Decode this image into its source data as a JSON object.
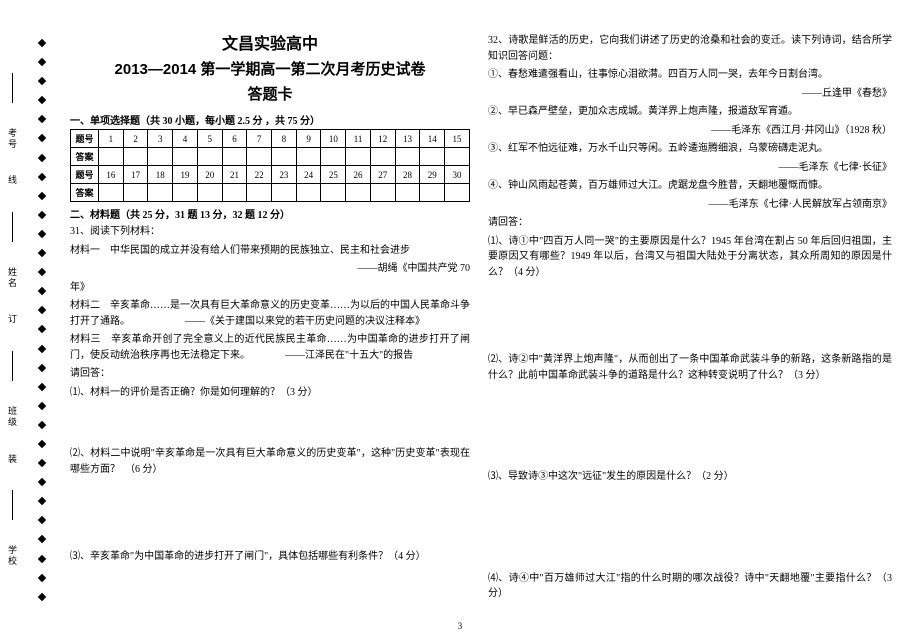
{
  "binding": {
    "labels": [
      "学校",
      "班级",
      "姓名",
      "考号"
    ],
    "seal_chars": [
      "装",
      "订",
      "线"
    ]
  },
  "header": {
    "school": "文昌实验高中",
    "exam": "2013—2014 第一学期高一第二次月考历史试卷",
    "sheet": "答题卡"
  },
  "section1": {
    "title": "一、单项选择题（共 30 小题，每小题 2.5 分 ，共 75 分）",
    "row_label_q": "题号",
    "row_label_a": "答案",
    "nums_a": [
      "1",
      "2",
      "3",
      "4",
      "5",
      "6",
      "7",
      "8",
      "9",
      "10",
      "11",
      "12",
      "13",
      "14",
      "15"
    ],
    "nums_b": [
      "16",
      "17",
      "18",
      "19",
      "20",
      "21",
      "22",
      "23",
      "24",
      "25",
      "26",
      "27",
      "28",
      "29",
      "30"
    ]
  },
  "section2": {
    "title": "二、材料题（共 25 分，31 题 13 分，32 题 12 分）",
    "q31_intro": "31、阅读下列材料：",
    "m1": "材料一　中华民国的成立并没有给人们带来预期的民族独立、民主和社会进步",
    "m1_src": "——胡绳《中国共产党 70",
    "m1_src2": "年》",
    "m2": "材料二　辛亥革命……是一次具有巨大革命意义的历史变革……为以后的中国人民革命斗争打开了通路。　　　　　　——《关于建国以来党的若干历史问题的决议注释本》",
    "m3": "材料三　辛亥革命开创了完全意义上的近代民族民主革命……为中国革命的进步打开了闸门，使反动统治秩序再也无法稳定下来。　　　　——江泽民在\"十五大\"的报告",
    "ask": "请回答：",
    "q1_1": "⑴、材料一的评价是否正确？你是如何理解的？（3 分）",
    "q1_2": "⑵、材料二中说明\"辛亥革命是一次具有巨大革命意义的历史变革\"，这种\"历史变革\"表现在哪些方面？　（6 分）",
    "q1_3": "⑶、辛亥革命\"为中国革命的进步打开了闸门\"，具体包括哪些有利条件？（4 分）"
  },
  "q32": {
    "intro": "32、诗歌是鲜活的历史，它向我们讲述了历史的沧桑和社会的变迁。读下列诗词，结合所学知识回答问题：",
    "p1": "①、春愁难遣强看山，往事惊心泪欲潸。四百万人同一哭，去年今日割台湾。",
    "p1_src": "——丘逢甲《春愁》",
    "p2": "②、早已森严壁垒，更加众志成城。黄洋界上炮声隆，报道敌军宵遁。",
    "p2_src": "——毛泽东《西江月·井冈山》（1928 秋）",
    "p3": "③、红军不怕远征难，万水千山只等闲。五岭逶迤腾细浪，乌蒙磅礴走泥丸。",
    "p3_src": "——毛泽东《七律·长征》",
    "p4": "④、钟山风雨起苍黄，百万雄师过大江。虎踞龙盘今胜昔，天翻地覆慨而慷。",
    "p4_src": "——毛泽东《七律·人民解放军占领南京》",
    "ask": "请回答：",
    "q1": "⑴、诗①中\"四百万人同一哭\"的主要原因是什么？1945 年台湾在割占 50 年后回归祖国，主要原因又有哪些？1949 年以后，台湾又与祖国大陆处于分离状态，其众所周知的原因是什么？（4 分）",
    "q2": "⑵、诗②中\"黄洋界上炮声隆\"，从而创出了一条中国革命武装斗争的新路，这条新路指的是什么？此前中国革命武装斗争的道路是什么？这种转变说明了什么？（3 分）",
    "q3": "⑶、导致诗③中这次\"远征\"发生的原因是什么？（2 分）",
    "q4": "⑷、诗④中\"百万雄师过大江\"指的什么时期的哪次战役？诗中\"天翻地覆\"主要指什么？（3 分）"
  },
  "pagenum": "3"
}
